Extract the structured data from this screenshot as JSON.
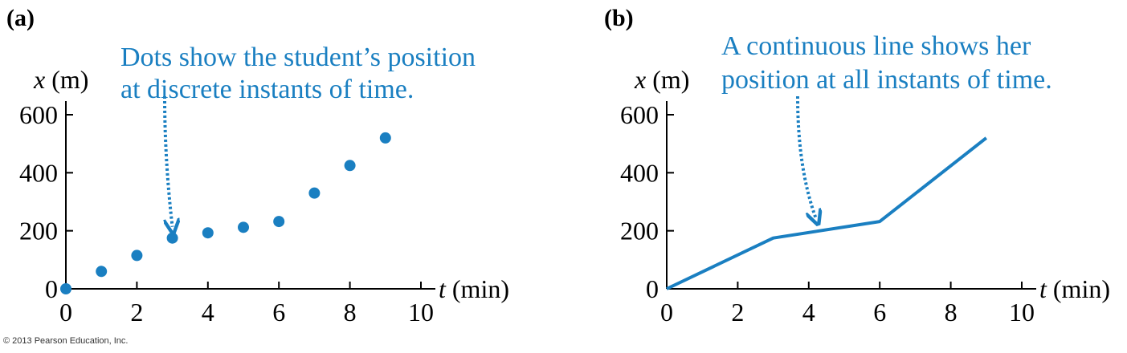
{
  "colors": {
    "accent": "#1a7fc1",
    "axis": "#000000"
  },
  "copyright": "© 2013 Pearson Education, Inc.",
  "panels": [
    {
      "label": "(a)",
      "annotation": [
        "Dots show the student’s position",
        "at discrete instants of time."
      ],
      "xlabel_var": "t",
      "xlabel_unit": " (min)",
      "ylabel_var": "x",
      "ylabel_unit": " (m)"
    },
    {
      "label": "(b)",
      "annotation": [
        "A continuous line shows her",
        "position at all instants of time."
      ],
      "xlabel_var": "t",
      "xlabel_unit": " (min)",
      "ylabel_var": "x",
      "ylabel_unit": " (m)"
    }
  ],
  "chart_data": [
    {
      "type": "scatter",
      "title": "",
      "xlabel": "t (min)",
      "ylabel": "x (m)",
      "xlim": [
        0,
        10
      ],
      "ylim": [
        0,
        600
      ],
      "xticks": [
        0,
        2,
        4,
        6,
        8,
        10
      ],
      "yticks": [
        0,
        200,
        400,
        600
      ],
      "grid": false,
      "x": [
        0,
        1,
        2,
        3,
        4,
        5,
        6,
        7,
        8,
        9
      ],
      "y": [
        0,
        60,
        115,
        175,
        193,
        212,
        232,
        330,
        425,
        520
      ],
      "arrow_target": [
        3,
        175
      ]
    },
    {
      "type": "line",
      "title": "",
      "xlabel": "t (min)",
      "ylabel": "x (m)",
      "xlim": [
        0,
        10
      ],
      "ylim": [
        0,
        600
      ],
      "xticks": [
        0,
        2,
        4,
        6,
        8,
        10
      ],
      "yticks": [
        0,
        200,
        400,
        600
      ],
      "grid": false,
      "x": [
        0,
        3,
        6,
        9
      ],
      "y": [
        0,
        175,
        232,
        520
      ],
      "arrow_target": [
        4.2,
        205
      ]
    }
  ]
}
